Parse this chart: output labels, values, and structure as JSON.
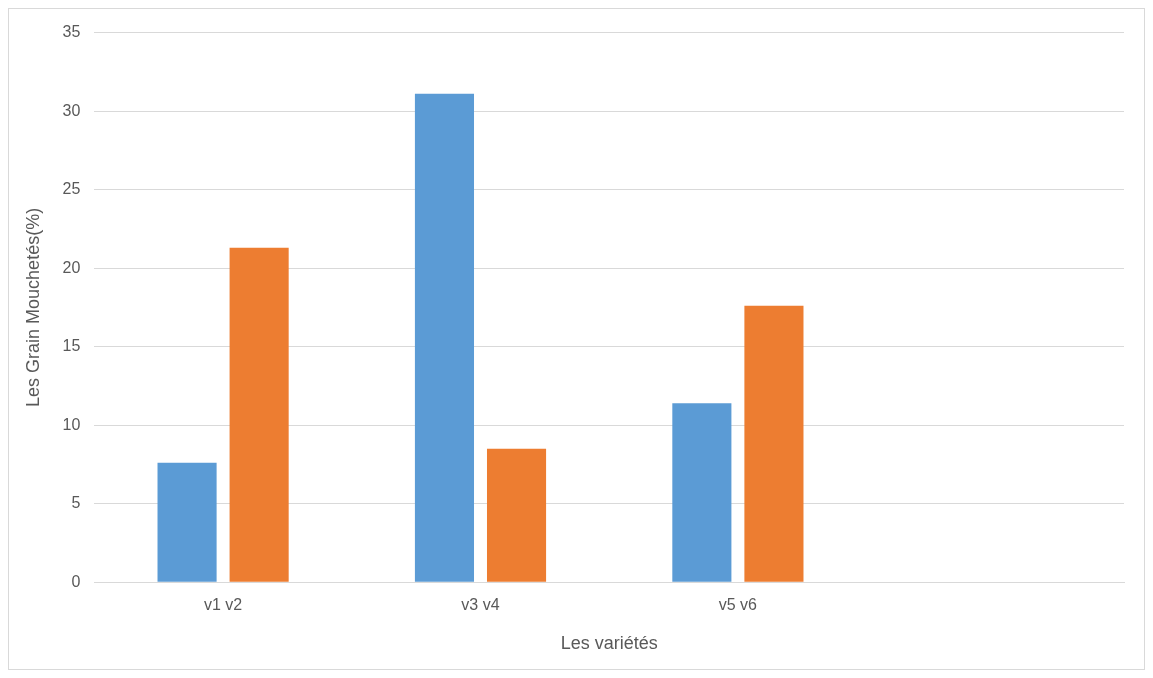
{
  "chart_data": {
    "type": "bar",
    "xlabel": "Les variétés",
    "ylabel": "Les Grain Mouchetés(%)",
    "categories": [
      "v1 v2",
      "v3 v4",
      "v5 v6",
      null
    ],
    "series": [
      {
        "color": "#5b9bd5",
        "values": [
          7.6,
          31.1,
          11.4,
          null
        ]
      },
      {
        "color": "#ed7d31",
        "values": [
          21.3,
          8.5,
          17.6,
          null
        ]
      }
    ],
    "ylim": [
      0,
      35
    ],
    "yticks": [
      0,
      5,
      10,
      15,
      20,
      25,
      30,
      35
    ],
    "grid": "y",
    "legend": false
  }
}
